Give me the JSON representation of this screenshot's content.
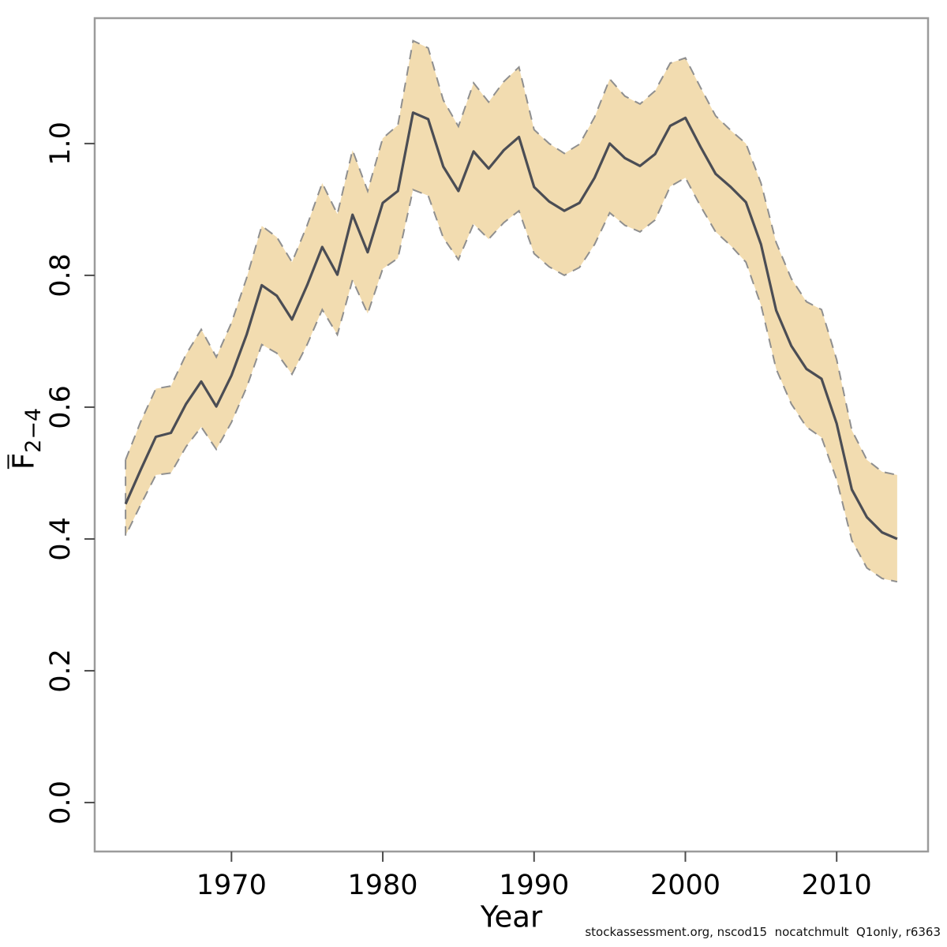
{
  "page": {
    "background": "#ffffff"
  },
  "footer": {
    "text": "stockassessment.org, nscod15  nocatchmult  Q1only, r6363"
  },
  "chart_data": {
    "type": "line",
    "title": "",
    "xlabel": "Year",
    "ylabel_base": "F",
    "ylabel_sub": "2−4",
    "grid": false,
    "legend": "none",
    "xlim": [
      1960.96,
      2016.04
    ],
    "ylim": [
      -0.0743,
      1.1903
    ],
    "x_ticks": [
      1970,
      1980,
      1990,
      2000,
      2010
    ],
    "x_tick_labels": [
      "1970",
      "1980",
      "1990",
      "2000",
      "2010"
    ],
    "y_ticks": [
      0.0,
      0.2,
      0.4,
      0.6,
      0.8,
      1.0
    ],
    "y_tick_labels": [
      "0.0",
      "0.2",
      "0.4",
      "0.6",
      "0.8",
      "1.0"
    ],
    "x": [
      1963,
      1964,
      1965,
      1966,
      1967,
      1968,
      1969,
      1970,
      1971,
      1972,
      1973,
      1974,
      1975,
      1976,
      1977,
      1978,
      1979,
      1980,
      1981,
      1982,
      1983,
      1984,
      1985,
      1986,
      1987,
      1988,
      1989,
      1990,
      1991,
      1992,
      1993,
      1994,
      1995,
      1996,
      1997,
      1998,
      1999,
      2000,
      2001,
      2002,
      2003,
      2004,
      2005,
      2006,
      2007,
      2008,
      2009,
      2010,
      2011,
      2012,
      2013,
      2014
    ],
    "series": [
      {
        "name": "Fbar(2-4) estimate",
        "style": "solid",
        "values": [
          0.453,
          0.505,
          0.555,
          0.561,
          0.605,
          0.639,
          0.601,
          0.648,
          0.71,
          0.785,
          0.769,
          0.733,
          0.785,
          0.843,
          0.801,
          0.892,
          0.835,
          0.91,
          0.928,
          1.047,
          1.037,
          0.965,
          0.928,
          0.988,
          0.962,
          0.99,
          1.01,
          0.934,
          0.912,
          0.898,
          0.91,
          0.948,
          1.0,
          0.978,
          0.966,
          0.984,
          1.027,
          1.039,
          0.995,
          0.954,
          0.934,
          0.911,
          0.847,
          0.747,
          0.693,
          0.658,
          0.643,
          0.575,
          0.475,
          0.433,
          0.41,
          0.4
        ]
      },
      {
        "name": "95% CI lower",
        "style": "dashed",
        "values": [
          0.405,
          0.452,
          0.497,
          0.5,
          0.54,
          0.57,
          0.536,
          0.577,
          0.63,
          0.695,
          0.682,
          0.65,
          0.695,
          0.748,
          0.71,
          0.793,
          0.742,
          0.81,
          0.826,
          0.93,
          0.921,
          0.857,
          0.824,
          0.878,
          0.855,
          0.88,
          0.898,
          0.833,
          0.813,
          0.8,
          0.812,
          0.847,
          0.895,
          0.876,
          0.866,
          0.884,
          0.935,
          0.948,
          0.905,
          0.866,
          0.845,
          0.82,
          0.755,
          0.658,
          0.605,
          0.57,
          0.554,
          0.49,
          0.398,
          0.356,
          0.34,
          0.335
        ]
      },
      {
        "name": "95% CI upper",
        "style": "dashed",
        "values": [
          0.52,
          0.578,
          0.628,
          0.632,
          0.68,
          0.718,
          0.676,
          0.728,
          0.796,
          0.875,
          0.858,
          0.82,
          0.876,
          0.94,
          0.893,
          0.99,
          0.928,
          1.008,
          1.028,
          1.156,
          1.145,
          1.066,
          1.026,
          1.092,
          1.063,
          1.094,
          1.116,
          1.021,
          1.0,
          0.985,
          0.999,
          1.04,
          1.098,
          1.072,
          1.06,
          1.08,
          1.122,
          1.13,
          1.085,
          1.042,
          1.02,
          1.0,
          0.94,
          0.85,
          0.795,
          0.76,
          0.748,
          0.672,
          0.565,
          0.52,
          0.502,
          0.497
        ]
      }
    ],
    "colors": {
      "band_fill": "#f2dcb0",
      "band_edge": "#8f8f8f",
      "line": "#4b4d54",
      "box": "#9b9b9b",
      "tick": "#4d4d4d",
      "tick_label": "#000000"
    }
  }
}
